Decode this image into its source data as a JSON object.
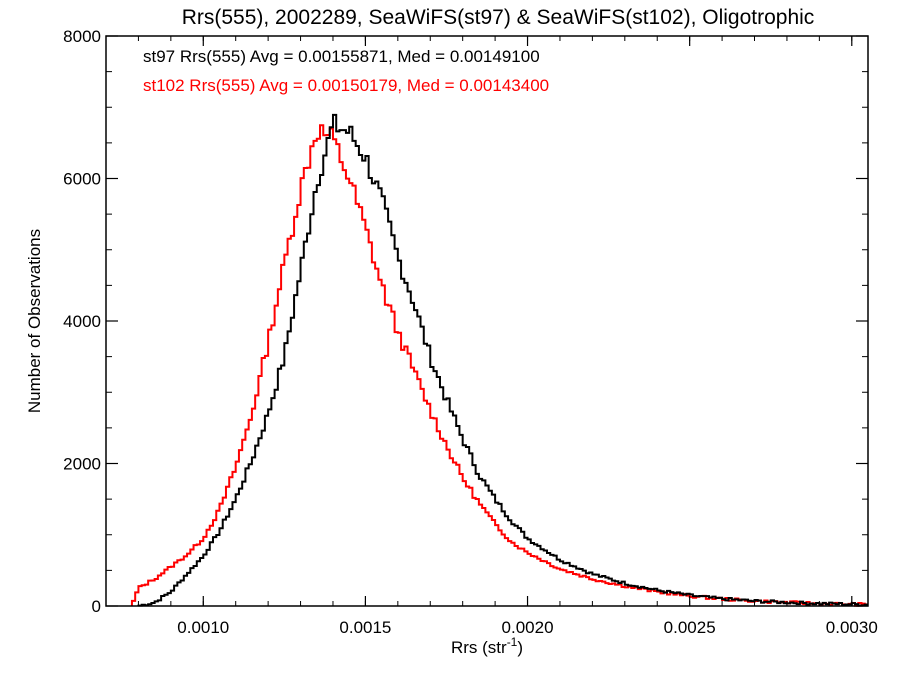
{
  "chart_data": {
    "type": "line",
    "style": "histogram-step",
    "title": "Rrs(555), 2002289, SeaWiFS(st97) & SeaWiFS(st102), Oligotrophic",
    "xlabel_main": "Rrs (str",
    "xlabel_sup": "-1",
    "xlabel_close": ")",
    "ylabel": "Number of Observations",
    "xlim": [
      0.0007,
      0.00305
    ],
    "ylim": [
      0,
      8000
    ],
    "xticks": [
      0.001,
      0.0015,
      0.002,
      0.0025,
      0.003
    ],
    "xtick_labels": [
      "0.0010",
      "0.0015",
      "0.0020",
      "0.0025",
      "0.0030"
    ],
    "yticks": [
      0,
      2000,
      4000,
      6000,
      8000
    ],
    "ytick_labels": [
      "0",
      "2000",
      "4000",
      "6000",
      "8000"
    ],
    "grid": false,
    "legend_position": "top-left",
    "bin_width": 1e-05,
    "series": [
      {
        "name": "st97",
        "label": "st97 Rrs(555) Avg = 0.00155871, Med = 0.00149100",
        "color": "#000000",
        "points": [
          [
            0.0008,
            0
          ],
          [
            0.00085,
            50
          ],
          [
            0.0009,
            200
          ],
          [
            0.00095,
            450
          ],
          [
            0.001,
            700
          ],
          [
            0.00105,
            1050
          ],
          [
            0.0011,
            1500
          ],
          [
            0.00115,
            2050
          ],
          [
            0.0012,
            2700
          ],
          [
            0.00125,
            3500
          ],
          [
            0.0013,
            4700
          ],
          [
            0.00135,
            5950
          ],
          [
            0.0014,
            6750
          ],
          [
            0.00145,
            6650
          ],
          [
            0.0015,
            6300
          ],
          [
            0.00155,
            5700
          ],
          [
            0.0016,
            4900
          ],
          [
            0.00165,
            4250
          ],
          [
            0.0017,
            3500
          ],
          [
            0.00175,
            2900
          ],
          [
            0.0018,
            2350
          ],
          [
            0.00185,
            1850
          ],
          [
            0.0019,
            1500
          ],
          [
            0.00195,
            1200
          ],
          [
            0.002,
            950
          ],
          [
            0.0021,
            650
          ],
          [
            0.0022,
            450
          ],
          [
            0.0023,
            320
          ],
          [
            0.0024,
            220
          ],
          [
            0.0025,
            150
          ],
          [
            0.0026,
            100
          ],
          [
            0.0027,
            70
          ],
          [
            0.0028,
            50
          ],
          [
            0.0029,
            35
          ],
          [
            0.003,
            25
          ],
          [
            0.00305,
            20
          ]
        ]
      },
      {
        "name": "st102",
        "label": "st102 Rrs(555) Avg = 0.00150179, Med = 0.00143400",
        "color": "#ff0000",
        "points": [
          [
            0.00078,
            0
          ],
          [
            0.0008,
            250
          ],
          [
            0.00085,
            380
          ],
          [
            0.0009,
            550
          ],
          [
            0.00095,
            720
          ],
          [
            0.001,
            950
          ],
          [
            0.00105,
            1350
          ],
          [
            0.0011,
            1950
          ],
          [
            0.00115,
            2700
          ],
          [
            0.0012,
            3700
          ],
          [
            0.00125,
            4800
          ],
          [
            0.0013,
            5850
          ],
          [
            0.00135,
            6700
          ],
          [
            0.0014,
            6550
          ],
          [
            0.00145,
            6000
          ],
          [
            0.0015,
            5300
          ],
          [
            0.00155,
            4500
          ],
          [
            0.0016,
            3850
          ],
          [
            0.00165,
            3300
          ],
          [
            0.0017,
            2750
          ],
          [
            0.00175,
            2250
          ],
          [
            0.0018,
            1800
          ],
          [
            0.00185,
            1450
          ],
          [
            0.0019,
            1150
          ],
          [
            0.00195,
            900
          ],
          [
            0.002,
            750
          ],
          [
            0.0021,
            520
          ],
          [
            0.0022,
            380
          ],
          [
            0.0023,
            280
          ],
          [
            0.0024,
            200
          ],
          [
            0.0025,
            140
          ],
          [
            0.0026,
            100
          ],
          [
            0.0027,
            70
          ],
          [
            0.0028,
            50
          ],
          [
            0.0029,
            35
          ],
          [
            0.003,
            25
          ],
          [
            0.00305,
            20
          ]
        ]
      }
    ]
  }
}
